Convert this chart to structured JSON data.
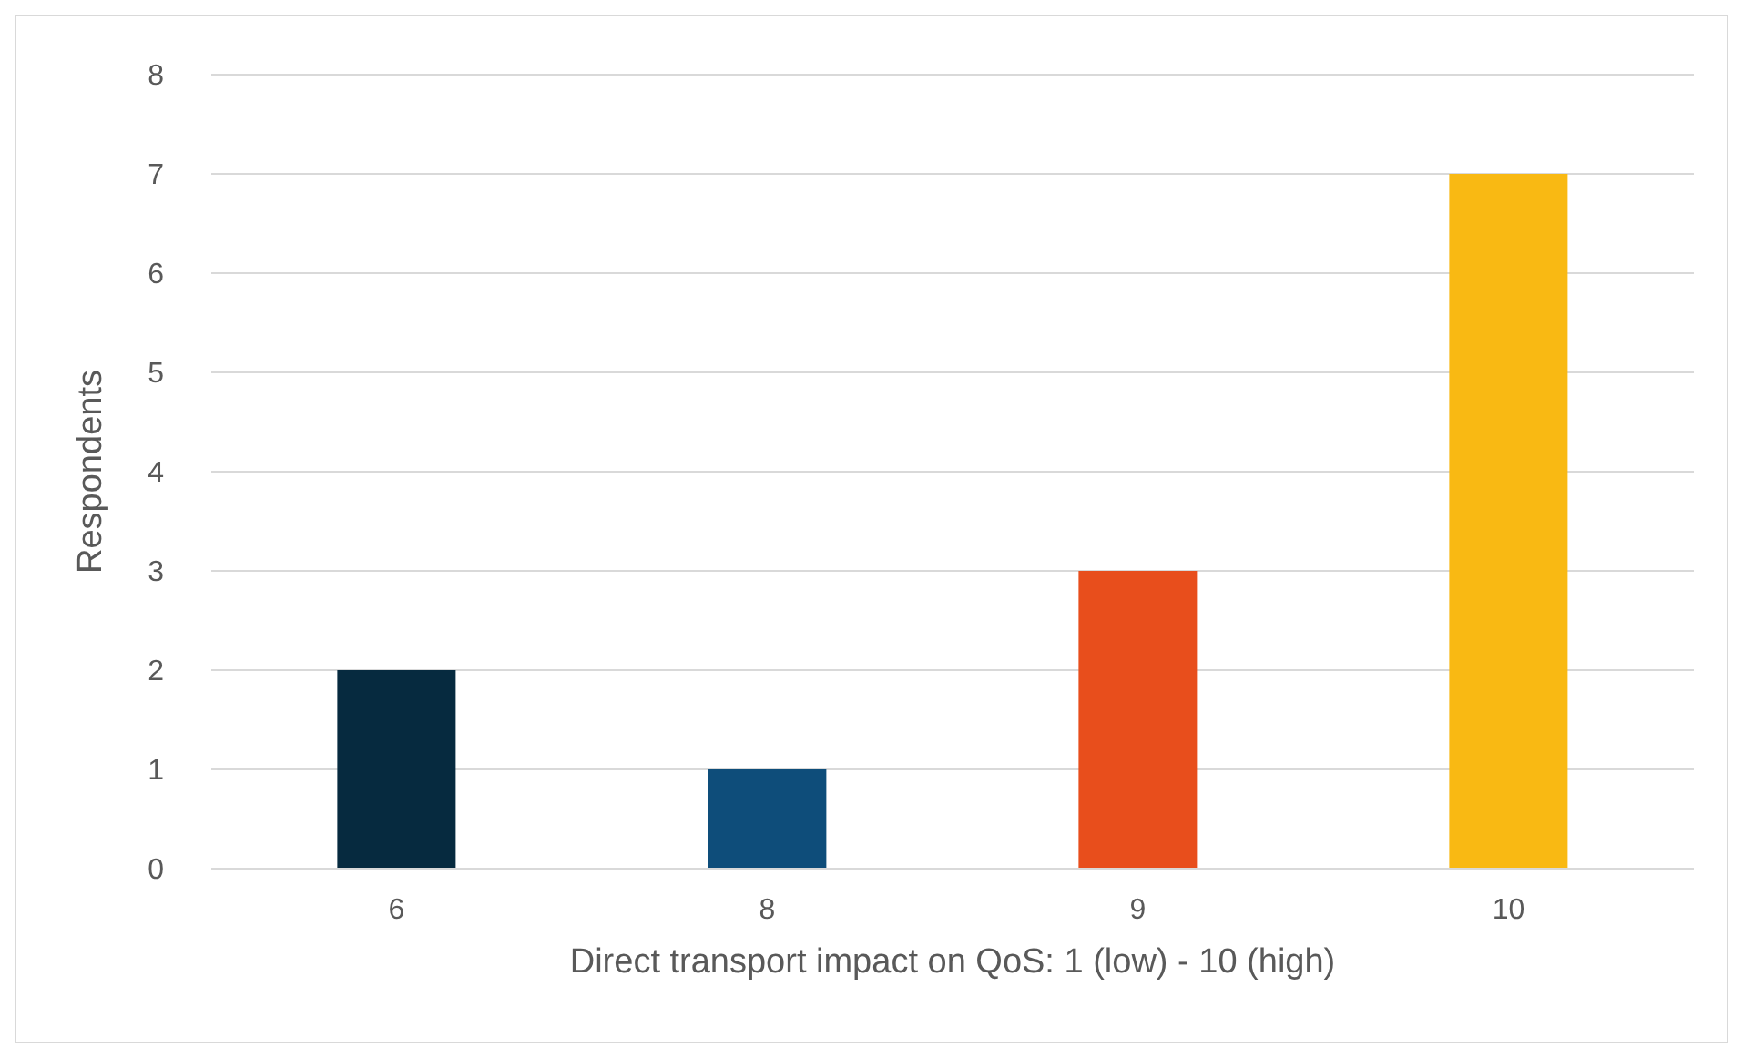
{
  "chart_data": {
    "type": "bar",
    "xlabel": "Direct transport impact on QoS: 1 (low) - 10 (high)",
    "ylabel": "Respondents",
    "categories": [
      "6",
      "8",
      "9",
      "10"
    ],
    "values": [
      2,
      1,
      3,
      7
    ],
    "colors": [
      "#062a3f",
      "#0e4d7a",
      "#e84e1c",
      "#f9b913"
    ],
    "ylim": [
      0,
      8
    ],
    "yticks": [
      0,
      1,
      2,
      3,
      4,
      5,
      6,
      7,
      8
    ],
    "grid": "y"
  }
}
